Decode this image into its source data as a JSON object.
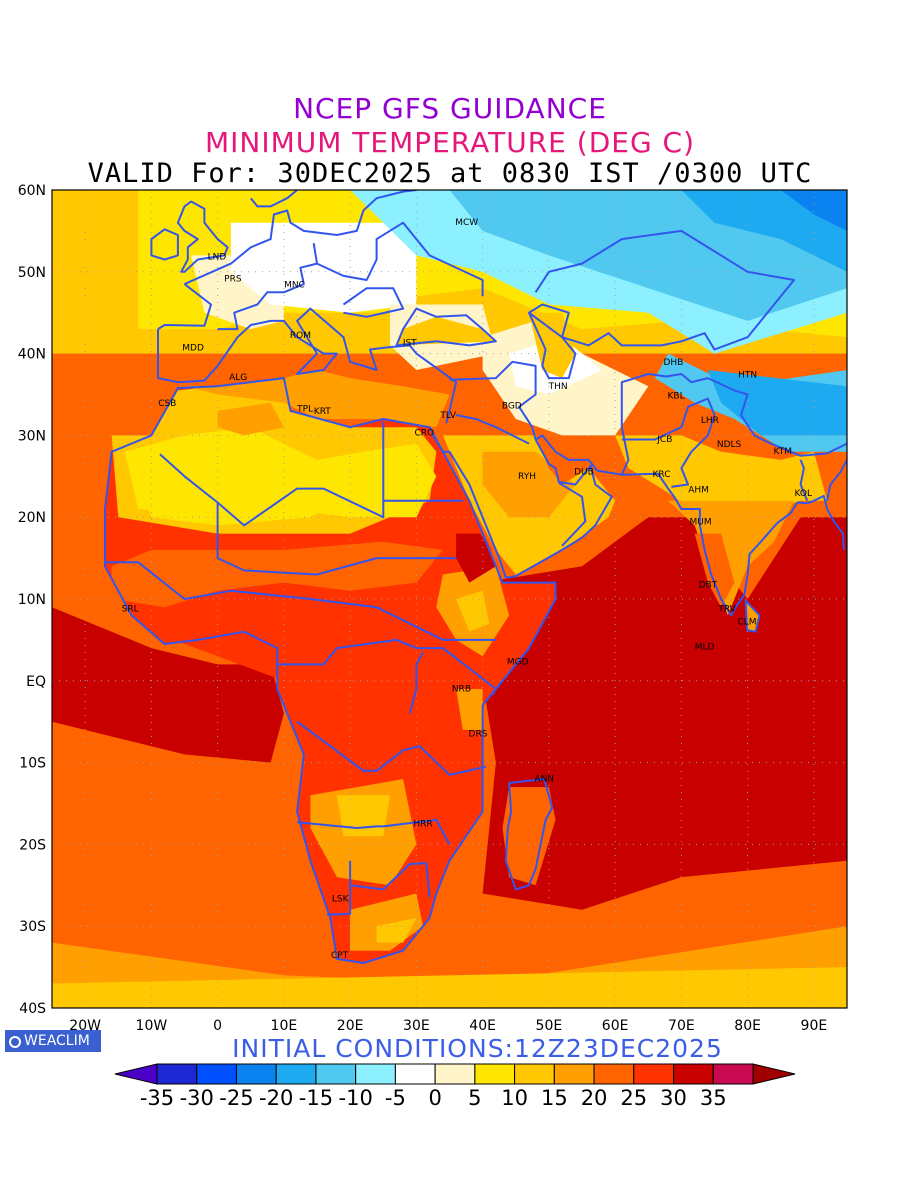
{
  "titles": {
    "line1": "NCEP GFS GUIDANCE",
    "line2": "MINIMUM TEMPERATURE (DEG C)",
    "line3": "VALID For: 30DEC2025 at 0830 IST /0300 UTC"
  },
  "axes": {
    "lat_labels": [
      "60N",
      "50N",
      "40N",
      "30N",
      "20N",
      "10N",
      "EQ",
      "10S",
      "20S",
      "30S",
      "40S"
    ],
    "lat_values": [
      60,
      50,
      40,
      30,
      20,
      10,
      0,
      -10,
      -20,
      -30,
      -40
    ],
    "lon_labels": [
      "20W",
      "10W",
      "0",
      "10E",
      "20E",
      "30E",
      "40E",
      "50E",
      "60E",
      "70E",
      "80E",
      "90E"
    ],
    "lon_values": [
      -20,
      -10,
      0,
      10,
      20,
      30,
      40,
      50,
      60,
      70,
      80,
      90
    ],
    "lon_range": [
      -25,
      95
    ],
    "lat_range": [
      -40,
      60
    ],
    "grid": "dotted"
  },
  "stations": [
    {
      "code": "MCW",
      "lon": 37.6,
      "lat": 55.7
    },
    {
      "code": "LND",
      "lon": -0.1,
      "lat": 51.5
    },
    {
      "code": "PRS",
      "lon": 2.3,
      "lat": 48.8
    },
    {
      "code": "MNC",
      "lon": 11.6,
      "lat": 48.1
    },
    {
      "code": "ROM",
      "lon": 12.5,
      "lat": 41.9
    },
    {
      "code": "MDD",
      "lon": -3.7,
      "lat": 40.4
    },
    {
      "code": "IST",
      "lon": 29.0,
      "lat": 41.0
    },
    {
      "code": "ALG",
      "lon": 3.1,
      "lat": 36.8
    },
    {
      "code": "DHB",
      "lon": 68.8,
      "lat": 38.6
    },
    {
      "code": "HTN",
      "lon": 80.0,
      "lat": 37.1
    },
    {
      "code": "THN",
      "lon": 51.4,
      "lat": 35.7
    },
    {
      "code": "KBL",
      "lon": 69.2,
      "lat": 34.5
    },
    {
      "code": "CSB",
      "lon": -7.6,
      "lat": 33.6
    },
    {
      "code": "TPL",
      "lon": 13.2,
      "lat": 32.9
    },
    {
      "code": "KRT",
      "lon": 15.8,
      "lat": 32.6
    },
    {
      "code": "BGD",
      "lon": 44.4,
      "lat": 33.3
    },
    {
      "code": "LHR",
      "lon": 74.3,
      "lat": 31.5
    },
    {
      "code": "TLV",
      "lon": 34.8,
      "lat": 32.1
    },
    {
      "code": "CRO",
      "lon": 31.2,
      "lat": 30.0
    },
    {
      "code": "JCB",
      "lon": 67.5,
      "lat": 29.2
    },
    {
      "code": "NDLS",
      "lon": 77.2,
      "lat": 28.6
    },
    {
      "code": "KTM",
      "lon": 85.3,
      "lat": 27.7
    },
    {
      "code": "RYH",
      "lon": 46.7,
      "lat": 24.7
    },
    {
      "code": "DUB",
      "lon": 55.3,
      "lat": 25.2
    },
    {
      "code": "KRC",
      "lon": 67.0,
      "lat": 24.9
    },
    {
      "code": "AHM",
      "lon": 72.6,
      "lat": 23.0
    },
    {
      "code": "KOL",
      "lon": 88.4,
      "lat": 22.6
    },
    {
      "code": "MUM",
      "lon": 72.9,
      "lat": 19.1
    },
    {
      "code": "DBT",
      "lon": 74.0,
      "lat": 11.4
    },
    {
      "code": "SRL",
      "lon": -13.2,
      "lat": 8.5
    },
    {
      "code": "TRV",
      "lon": 76.9,
      "lat": 8.5
    },
    {
      "code": "CLM",
      "lon": 79.9,
      "lat": 6.9
    },
    {
      "code": "MLD",
      "lon": 73.5,
      "lat": 3.8
    },
    {
      "code": "MGD",
      "lon": 45.3,
      "lat": 2.0
    },
    {
      "code": "NRB",
      "lon": 36.8,
      "lat": -1.3
    },
    {
      "code": "DRS",
      "lon": 39.3,
      "lat": -6.8
    },
    {
      "code": "ANN",
      "lon": 49.3,
      "lat": -12.3
    },
    {
      "code": "HRR",
      "lon": 31.0,
      "lat": -17.8
    },
    {
      "code": "LSK",
      "lon": 18.5,
      "lat": -27.0
    },
    {
      "code": "CPT",
      "lon": 18.4,
      "lat": -33.9
    }
  ],
  "logo": "WEACLIM",
  "initial_conditions": "INITIAL CONDITIONS:12Z23DEC2025",
  "colorbar": {
    "labels": [
      "-35",
      "-30",
      "-25",
      "-20",
      "-15",
      "-10",
      "-5",
      "0",
      "5",
      "10",
      "15",
      "20",
      "25",
      "30",
      "35"
    ],
    "colors": [
      "#4b00c8",
      "#1e28d2",
      "#0050ff",
      "#0a82f0",
      "#1eaaf0",
      "#50c8f0",
      "#8cf0ff",
      "#ffffff",
      "#fff5c8",
      "#ffe600",
      "#ffc800",
      "#ffa000",
      "#ff6400",
      "#ff3200",
      "#c80000",
      "#c80a50",
      "#a00000"
    ]
  },
  "colors": {
    "coast": "#3355ee",
    "grid": "#a0a0a0"
  }
}
